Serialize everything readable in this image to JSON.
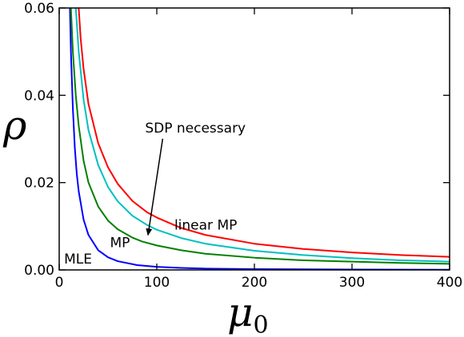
{
  "chart_data": {
    "type": "line",
    "title": "",
    "xlabel": "μ",
    "xlabel_sub": "0",
    "ylabel": "ρ",
    "xlim": [
      0,
      400
    ],
    "ylim": [
      0,
      0.06
    ],
    "grid": false,
    "legend": "none",
    "x_ticks": [
      "0",
      "100",
      "200",
      "300",
      "400"
    ],
    "y_ticks": [
      "0.00",
      "0.02",
      "0.04",
      "0.06"
    ],
    "series": [
      {
        "name": "MLE",
        "color": "#0000ff",
        "x": [
          11,
          12,
          14,
          16,
          18,
          20,
          25,
          30,
          40,
          50,
          60,
          80,
          100,
          125,
          150,
          200,
          300,
          400
        ],
        "y": [
          0.06,
          0.05,
          0.037,
          0.028,
          0.022,
          0.018,
          0.0115,
          0.008,
          0.0045,
          0.0029,
          0.002,
          0.0011,
          0.0007,
          0.00045,
          0.0003,
          0.00018,
          8e-05,
          4e-05
        ]
      },
      {
        "name": "MP",
        "color": "#008000",
        "x": [
          12,
          14,
          17,
          20,
          25,
          30,
          40,
          50,
          60,
          75,
          85,
          100,
          125,
          150,
          200,
          250,
          300,
          350,
          400
        ],
        "y": [
          0.06,
          0.05,
          0.04,
          0.033,
          0.025,
          0.02,
          0.0145,
          0.0113,
          0.0093,
          0.0074,
          0.0065,
          0.0056,
          0.0045,
          0.0037,
          0.0028,
          0.0022,
          0.0019,
          0.0016,
          0.0014
        ]
      },
      {
        "name": "linear MP",
        "color": "#ff0000",
        "x": [
          20,
          22,
          25,
          30,
          40,
          50,
          60,
          75,
          90,
          100,
          125,
          150,
          200,
          250,
          300,
          350,
          400
        ],
        "y": [
          0.06,
          0.053,
          0.046,
          0.038,
          0.029,
          0.0235,
          0.0197,
          0.0158,
          0.0132,
          0.012,
          0.0096,
          0.008,
          0.006,
          0.0048,
          0.004,
          0.0034,
          0.003
        ]
      },
      {
        "name": "SDP necessary",
        "color": "#00bfbf",
        "x": [
          17,
          20,
          25,
          30,
          40,
          50,
          60,
          75,
          90,
          100,
          125,
          150,
          200,
          250,
          300,
          350,
          400
        ],
        "y": [
          0.06,
          0.05,
          0.039,
          0.032,
          0.024,
          0.019,
          0.0157,
          0.0124,
          0.0103,
          0.0092,
          0.0073,
          0.006,
          0.0044,
          0.0034,
          0.0027,
          0.0022,
          0.0019
        ]
      }
    ],
    "annotations": [
      {
        "text": "MLE",
        "x": 5,
        "y": 0.0015
      },
      {
        "text": "MP",
        "x": 52,
        "y": 0.0052
      },
      {
        "text": "linear MP",
        "x": 118,
        "y": 0.0092
      },
      {
        "text": "SDP necessary",
        "x": 88,
        "y": 0.0315,
        "arrow_to": [
          91,
          0.008
        ]
      }
    ]
  }
}
